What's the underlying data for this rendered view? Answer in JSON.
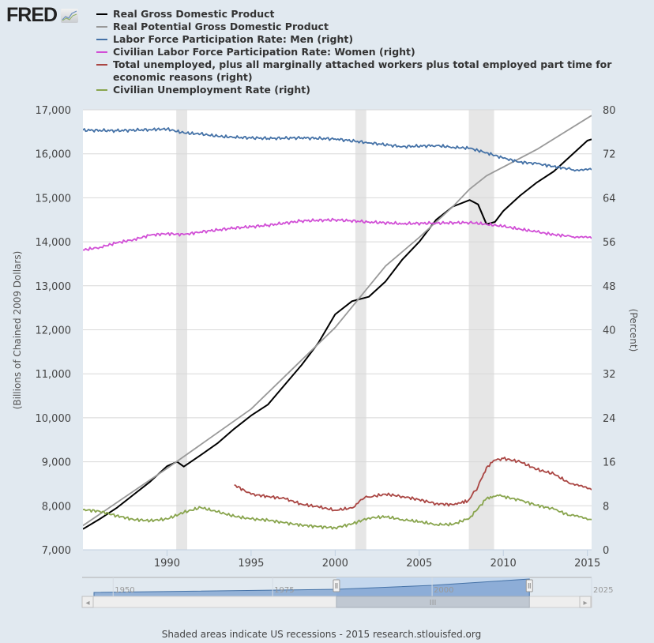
{
  "logo": {
    "text": "FRED",
    "icon": "chart-line-icon"
  },
  "legend": [
    {
      "label": "Real Gross Domestic Product",
      "color": "#000000"
    },
    {
      "label": "Real Potential Gross Domestic Product",
      "color": "#999999"
    },
    {
      "label": "Labor Force Participation Rate: Men (right)",
      "color": "#4572a7"
    },
    {
      "label": "Civilian Labor Force Participation Rate: Women (right)",
      "color": "#d14fd6"
    },
    {
      "label": "Total unemployed, plus all marginally attached workers plus total employed part time for economic reasons (right)",
      "color": "#aa4643"
    },
    {
      "label": "Civilian Unemployment Rate (right)",
      "color": "#89a54e"
    }
  ],
  "footer": "Shaded areas indicate US recessions - 2015 research.stlouisfed.org",
  "navigator": {
    "labels": [
      "1950",
      "1975",
      "2000",
      "2025"
    ],
    "range_start": 1985,
    "range_end": 2015.25,
    "left_arrow": "◂",
    "right_arrow": "▸",
    "grip": "III"
  },
  "chart_data": {
    "type": "line",
    "title": "",
    "xlabel": "",
    "ylabel_left": "(Billions of Chained 2009 Dollars)",
    "ylabel_right": "(Percent)",
    "xlim": [
      1985.0,
      2015.25
    ],
    "ylim_left": [
      7000,
      17000
    ],
    "ylim_right": [
      0,
      80
    ],
    "x_ticks": [
      "1990",
      "1995",
      "2000",
      "2005",
      "2010",
      "2015"
    ],
    "y_ticks_left": [
      "7,000",
      "8,000",
      "9,000",
      "10,000",
      "11,000",
      "12,000",
      "13,000",
      "14,000",
      "15,000",
      "16,000",
      "17,000"
    ],
    "y_ticks_right": [
      "0",
      "8",
      "16",
      "24",
      "32",
      "40",
      "48",
      "56",
      "64",
      "72",
      "80"
    ],
    "grid": true,
    "legend_position": "top",
    "recessions": [
      [
        1990.55,
        1991.2
      ],
      [
        2001.2,
        2001.85
      ],
      [
        2007.95,
        2009.45
      ]
    ],
    "series": [
      {
        "name": "Real Gross Domestic Product",
        "axis": "left",
        "color": "#000000",
        "x": [
          1985,
          1986,
          1987,
          1988,
          1989,
          1990,
          1990.6,
          1991,
          1992,
          1993,
          1994,
          1995,
          1996,
          1997,
          1998,
          1999,
          2000,
          2001,
          2002,
          2003,
          2004,
          2005,
          2006,
          2007,
          2008,
          2008.5,
          2009,
          2009.5,
          2010,
          2011,
          2012,
          2013,
          2014,
          2015,
          2015.25
        ],
        "values": [
          7470,
          7700,
          7950,
          8250,
          8550,
          8900,
          9000,
          8890,
          9150,
          9420,
          9750,
          10050,
          10300,
          10750,
          11200,
          11700,
          12350,
          12650,
          12750,
          13100,
          13600,
          14000,
          14500,
          14800,
          14950,
          14850,
          14400,
          14450,
          14700,
          15050,
          15350,
          15600,
          15950,
          16300,
          16330
        ]
      },
      {
        "name": "Real Potential Gross Domestic Product",
        "axis": "left",
        "color": "#999999",
        "x": [
          1985,
          1990,
          1995,
          2000,
          2003,
          2005,
          2007,
          2008,
          2009,
          2010,
          2012,
          2015.25
        ],
        "values": [
          7550,
          8850,
          10200,
          12050,
          13450,
          14100,
          14800,
          15200,
          15500,
          15700,
          16100,
          16870
        ]
      },
      {
        "name": "Labor Force Participation Rate: Men (right)",
        "axis": "right",
        "color": "#4572a7",
        "x": [
          1985,
          1987,
          1989,
          1990,
          1991,
          1992,
          1993,
          1994,
          1996,
          1998,
          2000,
          2002,
          2004,
          2006,
          2007,
          2008,
          2009,
          2010,
          2011,
          2012,
          2013,
          2014,
          2015.25
        ],
        "values": [
          76.3,
          76.2,
          76.4,
          76.5,
          75.8,
          75.6,
          75.2,
          75.0,
          74.8,
          74.9,
          74.7,
          74.0,
          73.3,
          73.5,
          73.2,
          73.0,
          72.2,
          71.2,
          70.5,
          70.2,
          69.7,
          69.2,
          69.1
        ]
      },
      {
        "name": "Civilian Labor Force Participation Rate: Women (right)",
        "axis": "right",
        "color": "#d14fd6",
        "x": [
          1985,
          1986,
          1987,
          1988,
          1989,
          1990,
          1991,
          1992,
          1994,
          1996,
          1998,
          2000,
          2002,
          2004,
          2006,
          2008,
          2009,
          2010,
          2011,
          2012,
          2013,
          2014,
          2015.25
        ],
        "values": [
          54.5,
          55.0,
          55.8,
          56.4,
          57.2,
          57.5,
          57.3,
          57.8,
          58.5,
          59.0,
          59.8,
          60.0,
          59.6,
          59.3,
          59.4,
          59.5,
          59.2,
          58.8,
          58.3,
          57.8,
          57.3,
          57.0,
          56.6
        ]
      },
      {
        "name": "Total unemployed, plus all marginally attached workers plus total employed part time for economic reasons (right)",
        "axis": "right",
        "color": "#aa4643",
        "x": [
          1994,
          1995,
          1996,
          1997,
          1998,
          1999,
          2000,
          2001,
          2001.7,
          2002,
          2003,
          2004,
          2005,
          2006,
          2007,
          2007.9,
          2008.5,
          2009,
          2009.5,
          2010,
          2011,
          2012,
          2013,
          2014,
          2015.25
        ],
        "values": [
          11.8,
          10.1,
          9.7,
          9.3,
          8.3,
          7.8,
          7.2,
          7.6,
          9.3,
          9.6,
          10.1,
          9.7,
          9.1,
          8.4,
          8.2,
          8.9,
          11.5,
          15.0,
          16.3,
          16.6,
          16.0,
          14.6,
          13.8,
          12.0,
          10.9
        ]
      },
      {
        "name": "Civilian Unemployment Rate (right)",
        "axis": "right",
        "color": "#89a54e",
        "x": [
          1985,
          1986,
          1987,
          1988,
          1989,
          1990,
          1991,
          1992,
          1993,
          1994,
          1995,
          1996,
          1997,
          1998,
          1999,
          2000,
          2001,
          2002,
          2003,
          2004,
          2005,
          2006,
          2007,
          2008,
          2009,
          2009.8,
          2010,
          2011,
          2012,
          2013,
          2014,
          2015.25
        ],
        "values": [
          7.3,
          7.0,
          6.2,
          5.5,
          5.3,
          5.6,
          6.8,
          7.7,
          6.9,
          6.1,
          5.6,
          5.4,
          4.9,
          4.5,
          4.2,
          4.0,
          4.7,
          5.8,
          6.0,
          5.5,
          5.1,
          4.6,
          4.6,
          5.8,
          9.3,
          10.0,
          9.7,
          9.0,
          8.1,
          7.4,
          6.2,
          5.5
        ]
      }
    ]
  }
}
